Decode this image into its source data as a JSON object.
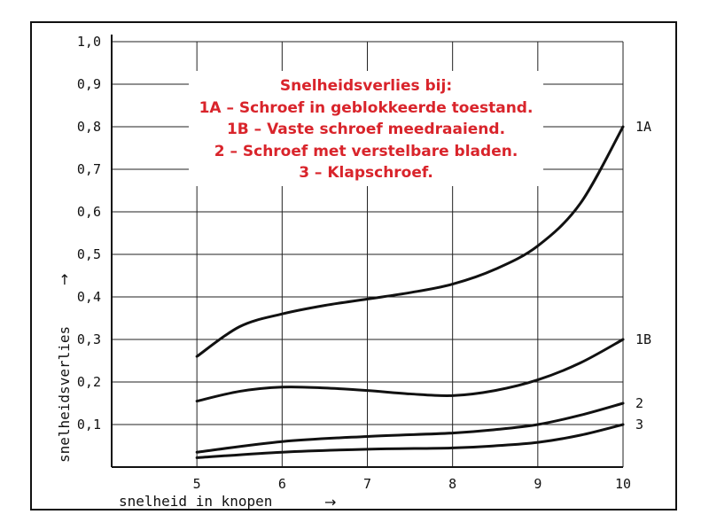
{
  "chart_data": {
    "type": "line",
    "title_lines": [
      "Snelheidsverlies bij:",
      "1A – Schroef in geblokkeerde toestand.",
      "1B – Vaste schroef meedraaiend.",
      "2 – Schroef met verstelbare bladen.",
      "3 – Klapschroef."
    ],
    "title_color": "#d9242b",
    "xlabel": "snelheid in knopen",
    "ylabel": "snelheidsverlies",
    "xlim": [
      4,
      10
    ],
    "ylim": [
      0,
      1.0
    ],
    "x_ticks": [
      5,
      6,
      7,
      8,
      9,
      10
    ],
    "y_ticks": [
      0.1,
      0.2,
      0.3,
      0.4,
      0.5,
      0.6,
      0.7,
      0.8,
      0.9,
      1.0
    ],
    "y_tick_labels": [
      "0,1",
      "0,2",
      "0,3",
      "0,4",
      "0,5",
      "0,6",
      "0,7",
      "0,8",
      "0,9",
      "1,0"
    ],
    "grid": true,
    "series": [
      {
        "name": "1A",
        "x": [
          5,
          5.5,
          6,
          6.5,
          7,
          7.5,
          8,
          8.5,
          9,
          9.5,
          10
        ],
        "values": [
          0.26,
          0.33,
          0.36,
          0.38,
          0.395,
          0.41,
          0.43,
          0.465,
          0.52,
          0.62,
          0.8
        ]
      },
      {
        "name": "1B",
        "x": [
          5,
          5.5,
          6,
          6.5,
          7,
          7.5,
          8,
          8.5,
          9,
          9.5,
          10
        ],
        "values": [
          0.155,
          0.178,
          0.188,
          0.186,
          0.18,
          0.172,
          0.168,
          0.18,
          0.205,
          0.245,
          0.3
        ]
      },
      {
        "name": "2",
        "x": [
          5,
          6,
          7,
          8,
          8.5,
          9,
          9.5,
          10
        ],
        "values": [
          0.035,
          0.06,
          0.072,
          0.08,
          0.088,
          0.1,
          0.122,
          0.15
        ]
      },
      {
        "name": "3",
        "x": [
          5,
          6,
          7,
          8,
          8.5,
          9,
          9.5,
          10
        ],
        "values": [
          0.022,
          0.035,
          0.042,
          0.045,
          0.05,
          0.058,
          0.075,
          0.1
        ]
      }
    ]
  }
}
